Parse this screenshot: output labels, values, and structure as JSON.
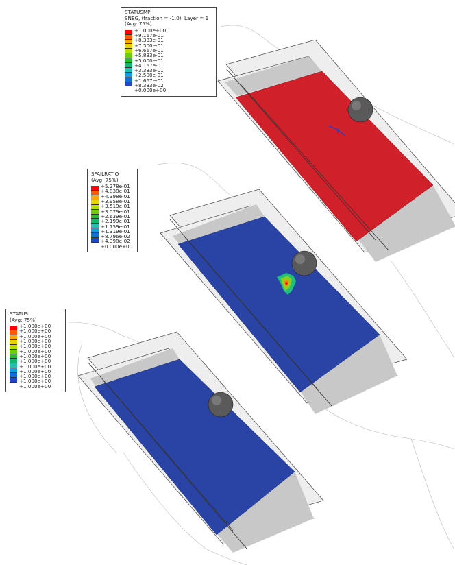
{
  "legends": {
    "top": {
      "title_lines": [
        "STATUSMP",
        "SNEG, (fraction = -1.0), Layer = 1",
        "(Avg: 75%)"
      ],
      "values": [
        "+1.000e+00",
        "+9.167e-01",
        "+8.333e-01",
        "+7.500e-01",
        "+6.667e-01",
        "+5.833e-01",
        "+5.000e-01",
        "+4.167e-01",
        "+3.333e-01",
        "+2.500e-01",
        "+1.667e-01",
        "+8.333e-02",
        "+0.000e+00"
      ]
    },
    "middle": {
      "title_lines": [
        "SFAILRATIO",
        "(Avg: 75%)"
      ],
      "values": [
        "+5.278e-01",
        "+4.838e-01",
        "+4.398e-01",
        "+3.958e-01",
        "+3.519e-01",
        "+3.079e-01",
        "+2.639e-01",
        "+2.199e-01",
        "+1.759e-01",
        "+1.319e-01",
        "+8.796e-02",
        "+4.398e-02",
        "+0.000e+00"
      ]
    },
    "bottom": {
      "title_lines": [
        "STATUS",
        "(Avg: 75%)"
      ],
      "values": [
        "+1.000e+00",
        "+1.000e+00",
        "+1.000e+00",
        "+1.000e+00",
        "+1.000e+00",
        "+1.000e+00",
        "+1.000e+00",
        "+1.000e+00",
        "+1.000e+00",
        "+1.000e+00",
        "+1.000e+00",
        "+1.000e+00",
        "+1.000e+00"
      ]
    }
  },
  "colors": {
    "contour_scale": [
      "#ff0000",
      "#ff5a00",
      "#ffa600",
      "#e7d400",
      "#b4e000",
      "#6ed000",
      "#26c02a",
      "#14b86a",
      "#1fc0b0",
      "#10a0e0",
      "#1070d8",
      "#1e48c8",
      "#1f2f9e"
    ],
    "plate_red": "#d0202a",
    "plate_blue": "#2a44a6",
    "plate_grey": "#c8c8c8",
    "impactor": "#555555"
  }
}
